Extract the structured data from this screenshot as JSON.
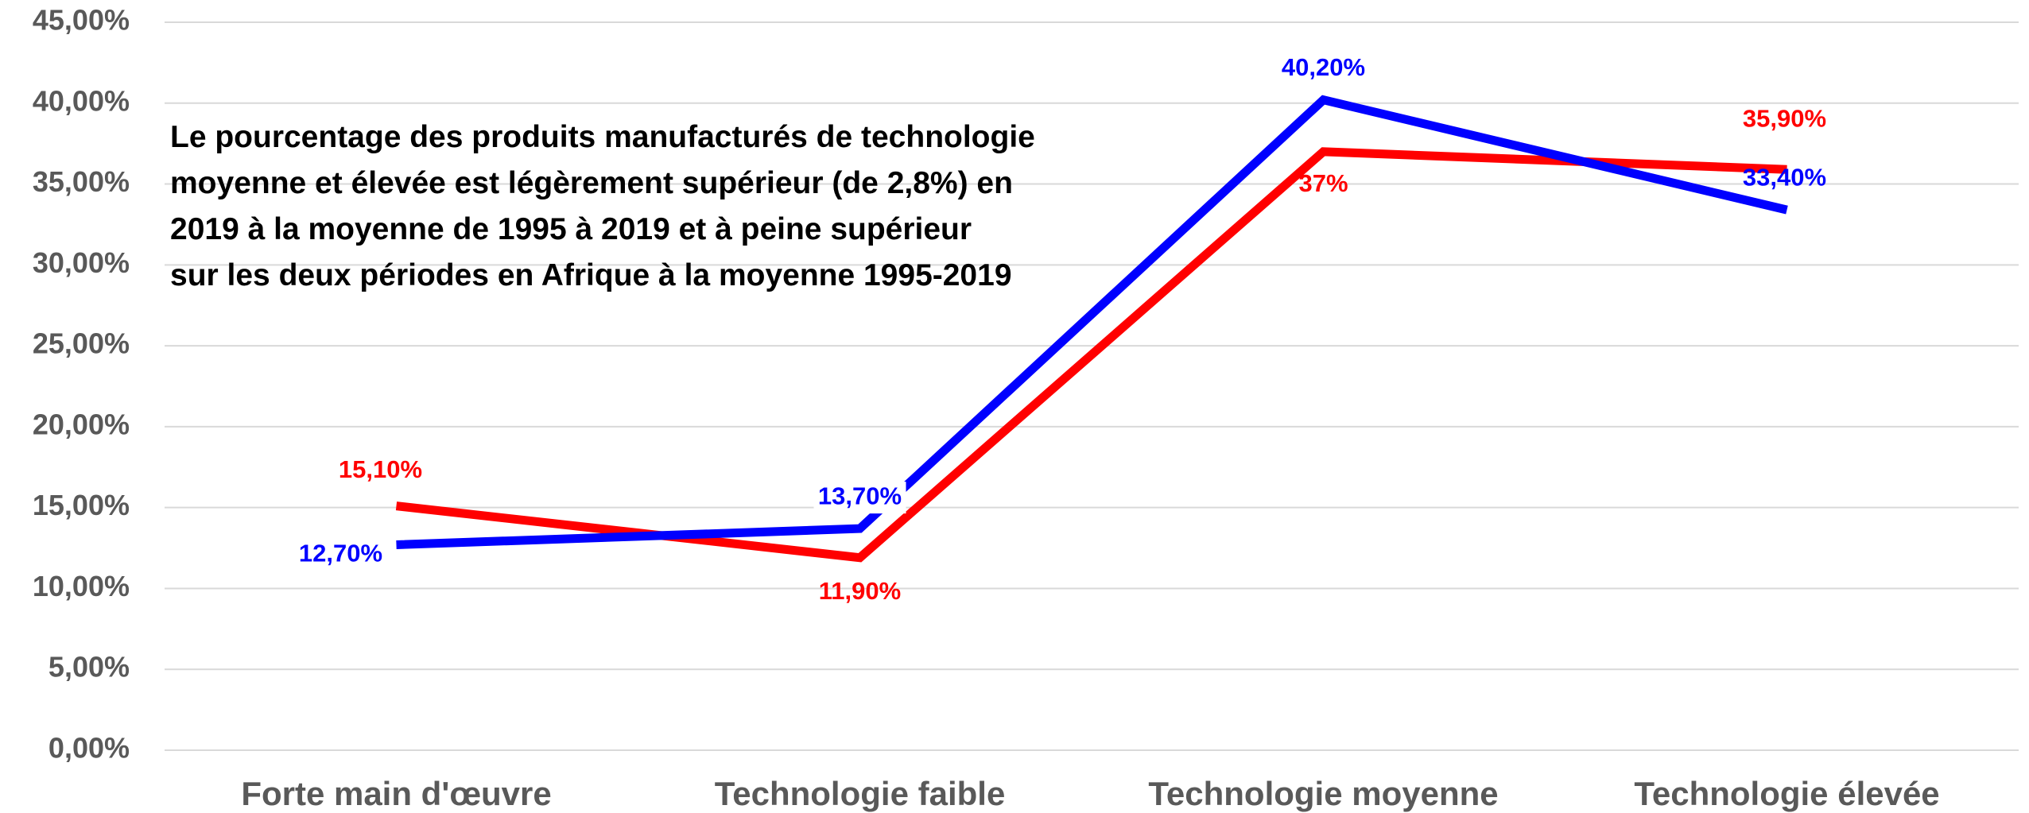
{
  "chart_data": {
    "type": "line",
    "categories": [
      "Forte main d'œuvre",
      "Technologie faible",
      "Technologie moyenne",
      "Technologie élevée"
    ],
    "series": [
      {
        "color": "#ff0000",
        "values": [
          15.1,
          11.9,
          37,
          35.9
        ],
        "value_labels": [
          "15,10%",
          "11,90%",
          "37%",
          "35,90%"
        ]
      },
      {
        "color": "#0000ff",
        "values": [
          12.7,
          13.7,
          40.2,
          33.4
        ],
        "value_labels": [
          "12,70%",
          "13,70%",
          "40,20%",
          "33,40%"
        ]
      }
    ],
    "ylim": [
      0,
      45
    ],
    "yticks": [
      {
        "value": 0,
        "label": "0,00%"
      },
      {
        "value": 5,
        "label": "5,00%"
      },
      {
        "value": 10,
        "label": "10,00%"
      },
      {
        "value": 15,
        "label": "15,00%"
      },
      {
        "value": 20,
        "label": "20,00%"
      },
      {
        "value": 25,
        "label": "25,00%"
      },
      {
        "value": 30,
        "label": "30,00%"
      },
      {
        "value": 35,
        "label": "35,00%"
      },
      {
        "value": 40,
        "label": "40,00%"
      },
      {
        "value": 45,
        "label": "45,00%"
      }
    ],
    "grid": true,
    "annotation": [
      "Le pourcentage des produits manufacturés de technologie",
      "moyenne et élevée est légèrement supérieur (de 2,8%) en",
      "2019 à la moyenne de 1995 à 2019 et à peine supérieur",
      "sur les deux périodes en Afrique à la moyenne 1995-2019"
    ]
  }
}
